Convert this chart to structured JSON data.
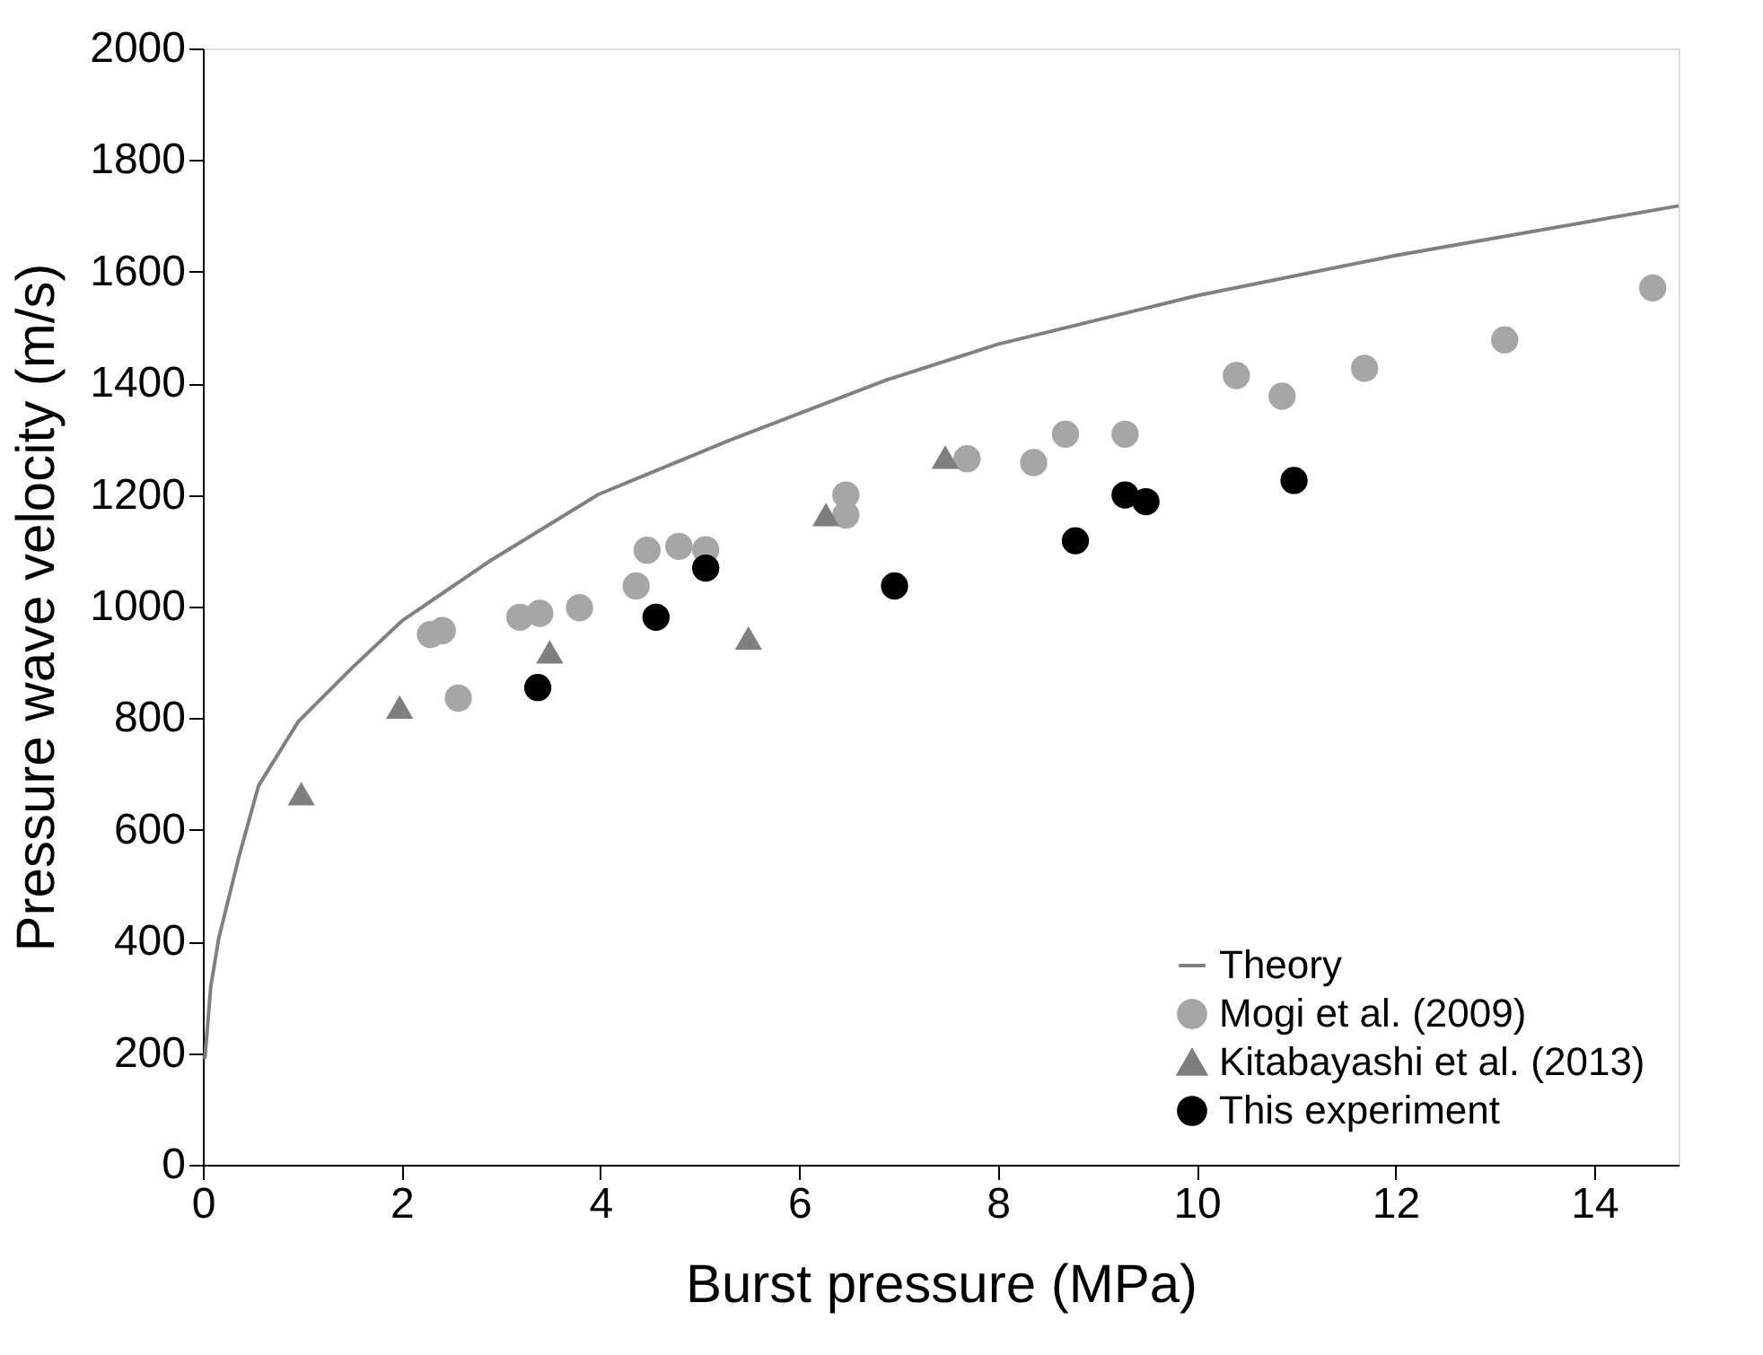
{
  "chart_data": {
    "type": "scatter",
    "xlabel": "Burst pressure (MPa)",
    "ylabel": "Pressure wave velocity (m/s)",
    "xlim": [
      0,
      14.85
    ],
    "ylim": [
      0,
      2000
    ],
    "xticks": [
      0,
      2,
      4,
      6,
      8,
      10,
      12,
      14
    ],
    "yticks": [
      0,
      200,
      400,
      600,
      800,
      1000,
      1200,
      1400,
      1600,
      1800,
      2000
    ],
    "grid": false,
    "legend": "bottom right",
    "series": [
      {
        "name": "Theory",
        "type": "line",
        "color": "#808080",
        "marker": "none",
        "line_style": "solid",
        "x": [
          0.02,
          0.08,
          0.16,
          0.36,
          0.56,
          0.96,
          1.5,
          2,
          2.89,
          3.98,
          5.3,
          6.88,
          8,
          10,
          12,
          14.85
        ],
        "values": [
          190,
          320,
          406,
          550,
          679,
          794,
          890,
          974,
          1082,
          1201,
          1298,
          1406,
          1470,
          1557,
          1629,
          1718
        ]
      },
      {
        "name": "Mogi et al. (2009)",
        "color": "#a6a6a6",
        "marker": "circle",
        "x": [
          2.29,
          2.41,
          2.57,
          3.19,
          3.39,
          3.79,
          4.36,
          4.47,
          4.79,
          5.06,
          6.47,
          6.47,
          7.69,
          8.36,
          8.68,
          9.28,
          10.4,
          10.86,
          11.69,
          13.1,
          14.59
        ],
        "values": [
          950,
          957,
          836,
          981,
          988,
          998,
          1037,
          1101,
          1108,
          1102,
          1200,
          1164,
          1265,
          1258,
          1309,
          1309,
          1414,
          1377,
          1427,
          1478,
          1571
        ]
      },
      {
        "name": "Kitabayashi et al. (2013)",
        "color": "#7f7f7f",
        "marker": "triangle",
        "x": [
          0.99,
          1.98,
          3.49,
          5.49,
          6.27,
          7.47
        ],
        "values": [
          665,
          820,
          919,
          944,
          1165,
          1268
        ]
      },
      {
        "name": "This experiment",
        "color": "#000000",
        "marker": "circle",
        "x": [
          3.37,
          4.56,
          5.06,
          6.96,
          8.78,
          9.28,
          9.49,
          10.98
        ],
        "values": [
          855,
          981,
          1069,
          1037,
          1118,
          1200,
          1188,
          1226
        ]
      }
    ]
  }
}
